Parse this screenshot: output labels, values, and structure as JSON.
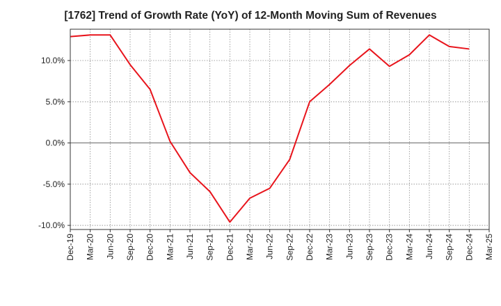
{
  "title": "[1762]  Trend of Growth Rate (YoY) of 12-Month Moving Sum of Revenues",
  "colors": {
    "line": "#e8141c",
    "grid": "#888888",
    "zero": "#666666",
    "axis": "#333333",
    "text": "#222222"
  },
  "chart_data": {
    "type": "line",
    "title": "[1762]  Trend of Growth Rate (YoY) of 12-Month Moving Sum of Revenues",
    "xlabel": "",
    "ylabel": "",
    "categories": [
      "Dec-19",
      "Mar-20",
      "Jun-20",
      "Sep-20",
      "Dec-20",
      "Mar-21",
      "Jun-21",
      "Sep-21",
      "Dec-21",
      "Mar-22",
      "Jun-22",
      "Sep-22",
      "Dec-22",
      "Mar-23",
      "Jun-23",
      "Sep-23",
      "Dec-23",
      "Mar-24",
      "Jun-24",
      "Sep-24",
      "Dec-24",
      "Mar-25"
    ],
    "y_ticks": [
      -10,
      -5,
      0,
      5,
      10
    ],
    "y_tick_labels": [
      "-10.0%",
      "-5.0%",
      "0.0%",
      "5.0%",
      "10.0%"
    ],
    "ylim": [
      -10.5,
      13.8
    ],
    "grid": true,
    "series": [
      {
        "values": [
          12.9,
          13.1,
          13.1,
          9.5,
          6.5,
          0.2,
          -3.6,
          -5.9,
          -9.6,
          -6.7,
          -5.5,
          -2.0,
          5.0,
          7.1,
          9.4,
          11.4,
          9.3,
          10.7,
          13.1,
          11.7,
          11.4,
          null
        ]
      }
    ]
  }
}
